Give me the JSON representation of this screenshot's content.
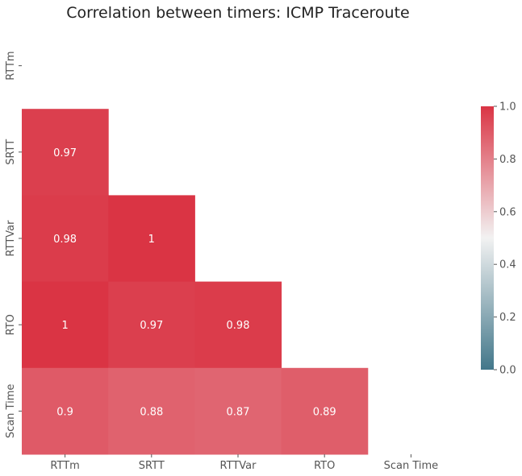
{
  "chart_data": {
    "type": "heatmap",
    "title": "Correlation between timers: ICMP Traceroute",
    "variables": [
      "RTTm",
      "SRTT",
      "RTTVar",
      "RTO",
      "Scan Time"
    ],
    "mask": "upper-triangle-and-diagonal",
    "values": [
      [
        null,
        null,
        null,
        null,
        null
      ],
      [
        0.97,
        null,
        null,
        null,
        null
      ],
      [
        0.98,
        1.0,
        null,
        null,
        null
      ],
      [
        1.0,
        0.97,
        0.98,
        null,
        null
      ],
      [
        0.9,
        0.88,
        0.87,
        0.89,
        null
      ]
    ],
    "labels": [
      [
        "",
        "",
        "",
        "",
        ""
      ],
      [
        "0.97",
        "",
        "",
        "",
        ""
      ],
      [
        "0.98",
        "1",
        "",
        "",
        ""
      ],
      [
        "1",
        "0.97",
        "0.98",
        "",
        ""
      ],
      [
        "0.9",
        "0.88",
        "0.87",
        "0.89",
        ""
      ]
    ],
    "colorbar": {
      "range": [
        0.0,
        1.0
      ],
      "ticks": [
        "0.0",
        "0.2",
        "0.4",
        "0.6",
        "0.8",
        "1.0"
      ],
      "colors": {
        "low": "#42778a",
        "mid": "#f2f2f2",
        "high": "#da3444"
      }
    }
  }
}
